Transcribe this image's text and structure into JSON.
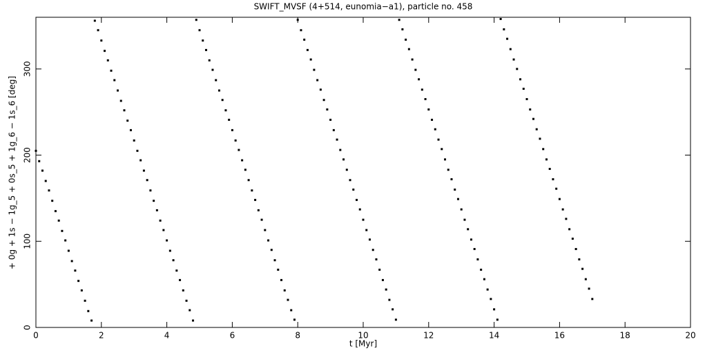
{
  "chart_data": {
    "type": "scatter",
    "title": "SWIFT_MVSF (4+514, eunomia−a1), particle no. 458",
    "x_label": "t [Myr]",
    "y_label": "+ 0g + 1s − 1g_5 + 0s_5 + 1g_6 − 1s_6 [deg]",
    "xlim": [
      0,
      20
    ],
    "xticks": [
      0,
      2,
      4,
      6,
      8,
      10,
      12,
      14,
      16,
      18,
      20
    ],
    "ylim": [
      0,
      360
    ],
    "yticks": [
      0,
      100,
      200,
      300
    ],
    "x": [
      0,
      0.1,
      0.2,
      0.3,
      0.4,
      0.5,
      0.6,
      0.7,
      0.8,
      0.9,
      1,
      1.1,
      1.2,
      1.3,
      1.4,
      1.5,
      1.6,
      1.7,
      1.8,
      1.9,
      2,
      2.1,
      2.2,
      2.3,
      2.4,
      2.5,
      2.6,
      2.7,
      2.8,
      2.9,
      3,
      3.1,
      3.2,
      3.3,
      3.4,
      3.5,
      3.6,
      3.7,
      3.8,
      3.9,
      4,
      4.1,
      4.2,
      4.3,
      4.4,
      4.5,
      4.6,
      4.7,
      4.8,
      4.9,
      5,
      5.1,
      5.2,
      5.3,
      5.4,
      5.5,
      5.6,
      5.7,
      5.8,
      5.9,
      6,
      6.1,
      6.2,
      6.3,
      6.4,
      6.5,
      6.6,
      6.7,
      6.8,
      6.9,
      7,
      7.1,
      7.2,
      7.3,
      7.4,
      7.5,
      7.6,
      7.7,
      7.8,
      7.9,
      8,
      8.1,
      8.2,
      8.3,
      8.4,
      8.5,
      8.6,
      8.7,
      8.8,
      8.9,
      9,
      9.1,
      9.2,
      9.3,
      9.4,
      9.5,
      9.6,
      9.7,
      9.8,
      9.9,
      10,
      10.1,
      10.2,
      10.3,
      10.4,
      10.5,
      10.6,
      10.7,
      10.8,
      10.9,
      11,
      11.1,
      11.2,
      11.3,
      11.4,
      11.5,
      11.6,
      11.7,
      11.8,
      11.9,
      12,
      12.1,
      12.2,
      12.3,
      12.4,
      12.5,
      12.6,
      12.7,
      12.8,
      12.9,
      13,
      13.1,
      13.2,
      13.3,
      13.4,
      13.5,
      13.6,
      13.7,
      13.8,
      13.9,
      14,
      14.1,
      14.2,
      14.3,
      14.4,
      14.5,
      14.6,
      14.7,
      14.8,
      14.9,
      15,
      15.1,
      15.2,
      15.3,
      15.4,
      15.5,
      15.6,
      15.7,
      15.8,
      15.9,
      16,
      16.1,
      16.2,
      16.3,
      16.4,
      16.5,
      16.6,
      16.7,
      16.8,
      16.9,
      17
    ],
    "series": [
      {
        "color": "#000000",
        "values": [
          205,
          193,
          182,
          170,
          159,
          147,
          135,
          124,
          112,
          101,
          89,
          77,
          66,
          54,
          43,
          31,
          19,
          8,
          356,
          345,
          333,
          321,
          310,
          298,
          287,
          275,
          263,
          252,
          240,
          229,
          217,
          205,
          194,
          182,
          171,
          159,
          147,
          136,
          124,
          113,
          101,
          89,
          78,
          66,
          55,
          43,
          31,
          20,
          8,
          357,
          345,
          333,
          322,
          310,
          299,
          287,
          275,
          264,
          252,
          241,
          229,
          217,
          206,
          194,
          183,
          171,
          159,
          148,
          136,
          125,
          113,
          101,
          90,
          78,
          67,
          55,
          43,
          32,
          20,
          9,
          357,
          345,
          334,
          322,
          311,
          299,
          287,
          276,
          264,
          253,
          241,
          229,
          218,
          206,
          195,
          183,
          171,
          160,
          148,
          137,
          125,
          113,
          102,
          90,
          79,
          67,
          55,
          44,
          32,
          21,
          9,
          357,
          346,
          334,
          323,
          311,
          299,
          288,
          276,
          265,
          253,
          241,
          230,
          218,
          207,
          195,
          183,
          172,
          160,
          149,
          137,
          125,
          114,
          102,
          91,
          79,
          67,
          56,
          44,
          33,
          21,
          9,
          358,
          346,
          335,
          323,
          311,
          300,
          288,
          277,
          265,
          253,
          242,
          230,
          219,
          207,
          195,
          184,
          172,
          161,
          149,
          137,
          126,
          114,
          103,
          91,
          79,
          68,
          56,
          45,
          33
        ]
      }
    ]
  }
}
